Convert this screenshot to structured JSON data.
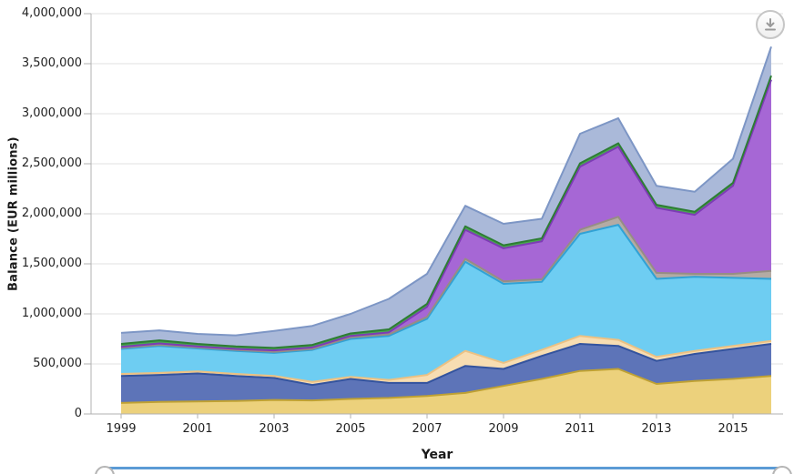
{
  "chart": {
    "y_axis_title": "Balance (EUR millions)",
    "x_axis_title": "Year",
    "y_ticks": [
      "0",
      "500,000",
      "1,000,000",
      "1,500,000",
      "2,000,000",
      "2,500,000",
      "3,000,000",
      "3,500,000",
      "4,000,000"
    ],
    "x_ticks": [
      "1999",
      "2001",
      "2003",
      "2005",
      "2007",
      "2009",
      "2011",
      "2013",
      "2015"
    ]
  },
  "chart_data": {
    "type": "area",
    "stacked": true,
    "title": "",
    "xlabel": "Year",
    "ylabel": "Balance (EUR millions)",
    "ylim": [
      0,
      4000000
    ],
    "grid": true,
    "legend": "none",
    "x": [
      1999,
      2000,
      2001,
      2002,
      2003,
      2004,
      2005,
      2006,
      2007,
      2008,
      2009,
      2010,
      2011,
      2012,
      2013,
      2014,
      2015,
      2016
    ],
    "series": [
      {
        "name": "yellow",
        "fill": "#ecd17c",
        "stroke": "#bfa133",
        "values": [
          110000,
          120000,
          125000,
          130000,
          140000,
          135000,
          150000,
          160000,
          180000,
          210000,
          280000,
          350000,
          430000,
          450000,
          300000,
          330000,
          350000,
          380000
        ]
      },
      {
        "name": "dark-blue",
        "fill": "#5d74b8",
        "stroke": "#33539e",
        "values": [
          270000,
          270000,
          280000,
          250000,
          220000,
          155000,
          200000,
          150000,
          130000,
          270000,
          170000,
          230000,
          270000,
          230000,
          230000,
          270000,
          300000,
          320000
        ]
      },
      {
        "name": "peach",
        "fill": "#f7ddb2",
        "stroke": "#ecc183",
        "values": [
          20000,
          20000,
          20000,
          20000,
          20000,
          30000,
          20000,
          30000,
          80000,
          150000,
          60000,
          60000,
          80000,
          60000,
          40000,
          30000,
          30000,
          30000
        ]
      },
      {
        "name": "cyan",
        "fill": "#6ecdf2",
        "stroke": "#30a2d6",
        "values": [
          250000,
          270000,
          230000,
          230000,
          230000,
          320000,
          380000,
          440000,
          560000,
          890000,
          790000,
          680000,
          1020000,
          1150000,
          780000,
          740000,
          680000,
          620000
        ]
      },
      {
        "name": "gray",
        "fill": "#b4aba4",
        "stroke": "#968d85",
        "values": [
          10000,
          10000,
          10000,
          10000,
          10000,
          10000,
          15000,
          15000,
          20000,
          30000,
          25000,
          25000,
          40000,
          80000,
          60000,
          30000,
          40000,
          80000
        ]
      },
      {
        "name": "purple",
        "fill": "#a667d5",
        "stroke": "#7d3cb5",
        "values": [
          10000,
          15000,
          10000,
          10000,
          15000,
          15000,
          15000,
          20000,
          100000,
          290000,
          330000,
          380000,
          630000,
          700000,
          650000,
          590000,
          880000,
          1910000
        ]
      },
      {
        "name": "green",
        "fill": "#48a74e",
        "stroke": "#2d7d33",
        "values": [
          30000,
          30000,
          25000,
          25000,
          25000,
          25000,
          25000,
          30000,
          30000,
          35000,
          30000,
          30000,
          35000,
          35000,
          30000,
          30000,
          30000,
          40000
        ]
      },
      {
        "name": "lavender",
        "fill": "#aab9d9",
        "stroke": "#7d96c5",
        "values": [
          110000,
          100000,
          100000,
          110000,
          170000,
          190000,
          195000,
          305000,
          300000,
          205000,
          215000,
          195000,
          295000,
          250000,
          190000,
          200000,
          240000,
          290000
        ]
      }
    ]
  },
  "colors": {
    "grid": "#e2e2e2",
    "axis": "#b0b0b0",
    "slider": "#5b9bd5"
  },
  "icons": {
    "download": "arrow-down-to-tray"
  }
}
